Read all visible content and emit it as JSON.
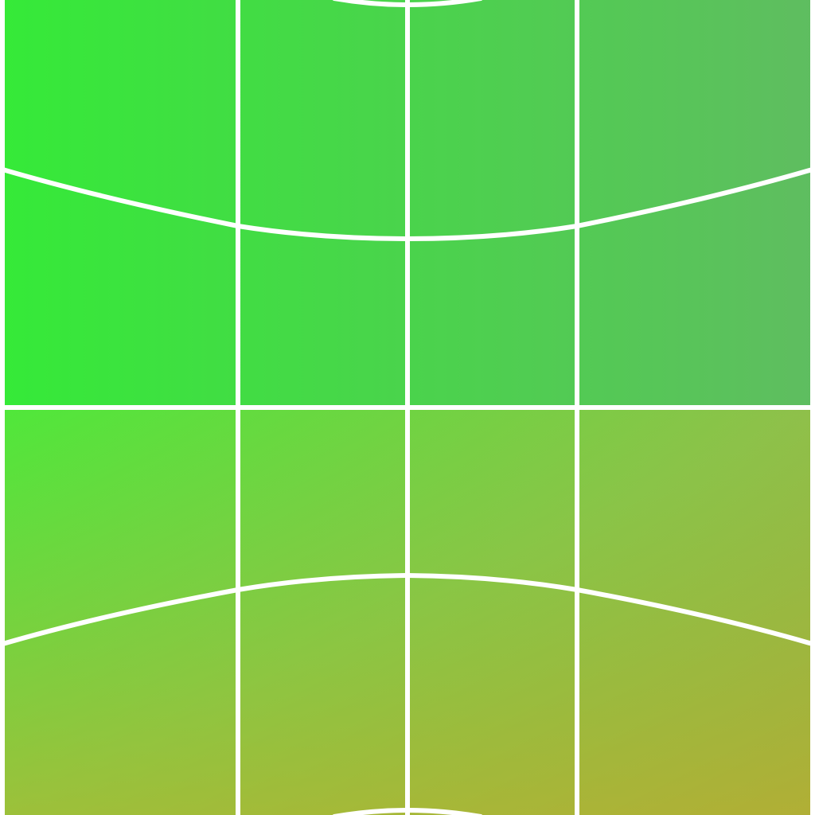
{
  "colors": {
    "top_left": "#35ea38",
    "top_right": "#5fbd60",
    "bottom_left": "#a7c12d",
    "bottom_right": "#bd9840",
    "line": "#ffffff"
  },
  "icons": [
    "warped-grid-pattern"
  ]
}
